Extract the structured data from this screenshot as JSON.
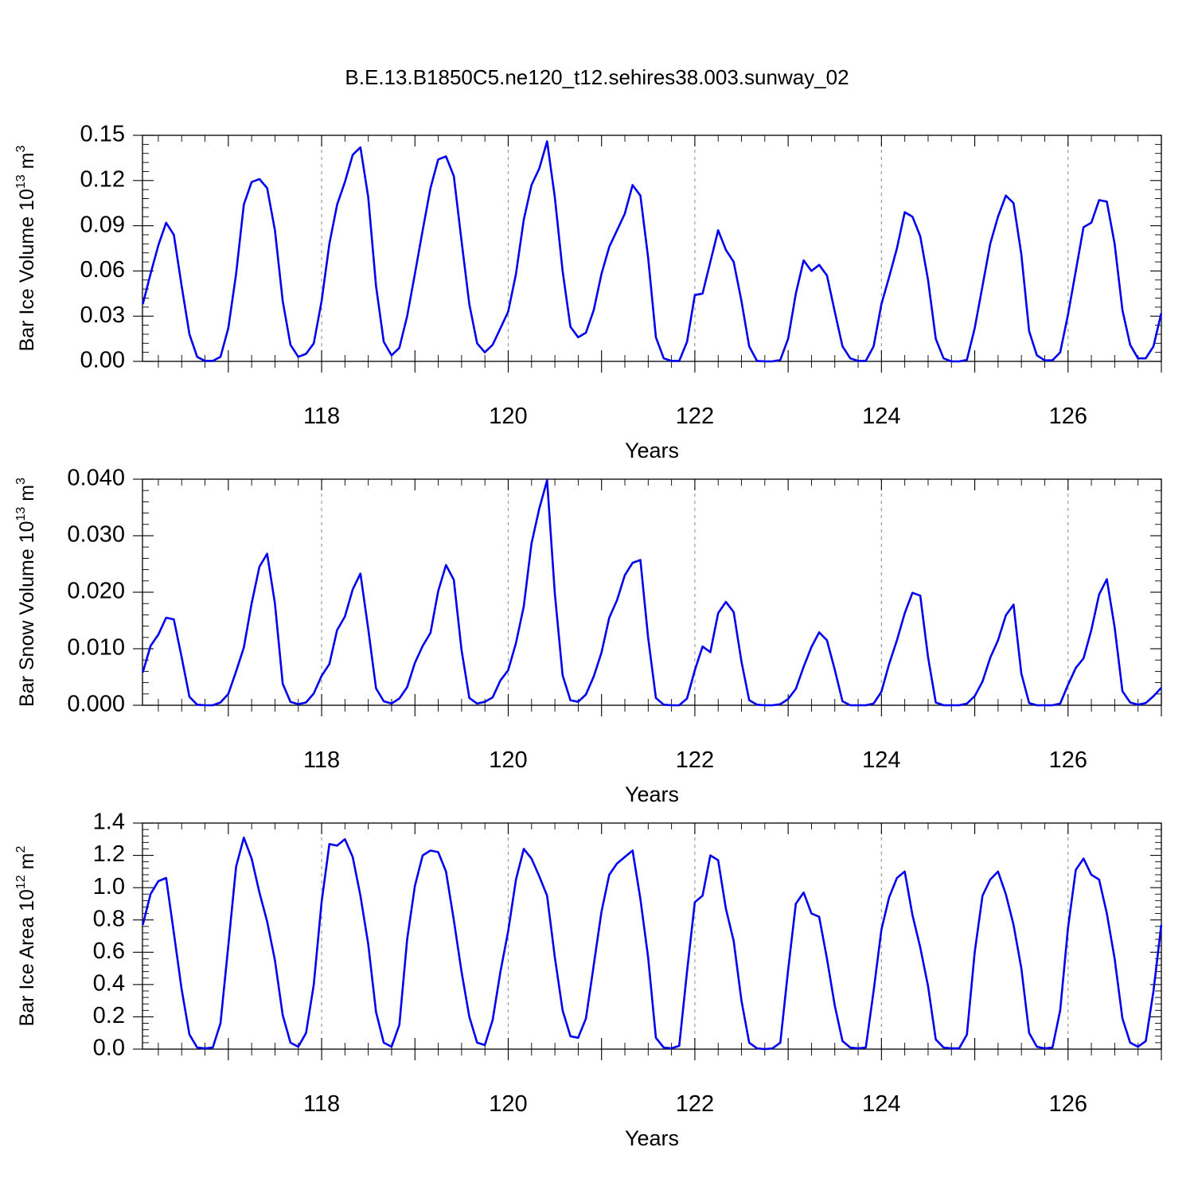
{
  "title": "B.E.13.B1850C5.ne120_t12.sehires38.003.sunway_02",
  "chart_data": [
    {
      "type": "line",
      "name": "ice-volume",
      "ylabel": "Bar Ice Volume 10",
      "ylabel_sup": "13",
      "ylabel_unit": " m",
      "ylabel_unit_sup": "3",
      "xlabel": "Years",
      "xlim": [
        116.08,
        127.0
      ],
      "ylim": [
        0,
        0.15
      ],
      "yticks": [
        0.0,
        0.03,
        0.06,
        0.09,
        0.12,
        0.15
      ],
      "ytick_labels": [
        "0.00",
        "0.03",
        "0.06",
        "0.09",
        "0.12",
        "0.15"
      ],
      "xticks": [
        118,
        120,
        122,
        124,
        126
      ],
      "xtick_labels": [
        "118",
        "120",
        "122",
        "124",
        "126"
      ],
      "vgrid": [
        118,
        120,
        122,
        124,
        126
      ],
      "grid": "dashed-vertical-at-major-x",
      "color": "#0000ee",
      "x_start": 116.083,
      "x_step": 0.08333,
      "values": [
        0.038,
        0.058,
        0.077,
        0.092,
        0.084,
        0.05,
        0.018,
        0.003,
        0.0003,
        0.0003,
        0.003,
        0.022,
        0.058,
        0.104,
        0.119,
        0.121,
        0.115,
        0.087,
        0.04,
        0.011,
        0.003,
        0.005,
        0.012,
        0.04,
        0.078,
        0.104,
        0.119,
        0.137,
        0.142,
        0.109,
        0.05,
        0.013,
        0.004,
        0.009,
        0.03,
        0.058,
        0.087,
        0.115,
        0.134,
        0.136,
        0.123,
        0.08,
        0.038,
        0.012,
        0.006,
        0.011,
        0.022,
        0.033,
        0.058,
        0.094,
        0.117,
        0.128,
        0.146,
        0.109,
        0.06,
        0.023,
        0.016,
        0.019,
        0.034,
        0.058,
        0.076,
        0.087,
        0.098,
        0.117,
        0.11,
        0.069,
        0.016,
        0.002,
        0.0003,
        0.0003,
        0.013,
        0.044,
        0.045,
        0.066,
        0.087,
        0.074,
        0.066,
        0.04,
        0.01,
        0.0003,
        0.0,
        0.0,
        0.001,
        0.015,
        0.045,
        0.067,
        0.06,
        0.064,
        0.057,
        0.033,
        0.01,
        0.002,
        0.0003,
        0.0003,
        0.01,
        0.038,
        0.056,
        0.075,
        0.099,
        0.096,
        0.083,
        0.054,
        0.015,
        0.002,
        0.0,
        0.0,
        0.001,
        0.022,
        0.05,
        0.078,
        0.096,
        0.11,
        0.105,
        0.071,
        0.02,
        0.004,
        0.0007,
        0.0007,
        0.006,
        0.031,
        0.06,
        0.089,
        0.092,
        0.107,
        0.106,
        0.078,
        0.034,
        0.011,
        0.002,
        0.002,
        0.01,
        0.032
      ]
    },
    {
      "type": "line",
      "name": "snow-volume",
      "ylabel": "Bar Snow Volume 10",
      "ylabel_sup": "13",
      "ylabel_unit": " m",
      "ylabel_unit_sup": "3",
      "xlabel": "Years",
      "xlim": [
        116.08,
        127.0
      ],
      "ylim": [
        0,
        0.04
      ],
      "yticks": [
        0.0,
        0.01,
        0.02,
        0.03,
        0.04
      ],
      "ytick_labels": [
        "0.000",
        "0.010",
        "0.020",
        "0.030",
        "0.040"
      ],
      "xticks": [
        118,
        120,
        122,
        124,
        126
      ],
      "xtick_labels": [
        "118",
        "120",
        "122",
        "124",
        "126"
      ],
      "vgrid": [
        118,
        120,
        122,
        124,
        126
      ],
      "grid": "dashed-vertical-at-major-x",
      "color": "#0000ee",
      "x_start": 116.083,
      "x_step": 0.08333,
      "values": [
        0.0058,
        0.0105,
        0.0125,
        0.0155,
        0.0152,
        0.0085,
        0.0015,
        0.0001,
        0.0,
        0.0,
        0.0005,
        0.002,
        0.006,
        0.0102,
        0.018,
        0.0245,
        0.0268,
        0.018,
        0.0038,
        0.0006,
        0.0002,
        0.0005,
        0.0021,
        0.0052,
        0.0073,
        0.0133,
        0.0157,
        0.0205,
        0.0233,
        0.0135,
        0.003,
        0.0007,
        0.0003,
        0.0012,
        0.0032,
        0.0075,
        0.0105,
        0.0128,
        0.0202,
        0.0248,
        0.0222,
        0.0098,
        0.0013,
        0.0003,
        0.0006,
        0.0014,
        0.0044,
        0.0062,
        0.011,
        0.0175,
        0.0286,
        0.0348,
        0.0398,
        0.0198,
        0.0053,
        0.0009,
        0.0006,
        0.0019,
        0.0051,
        0.0093,
        0.0155,
        0.0186,
        0.023,
        0.0252,
        0.0257,
        0.012,
        0.0013,
        0.0001,
        0.0,
        0.0,
        0.0012,
        0.0062,
        0.0104,
        0.0094,
        0.0163,
        0.0183,
        0.0165,
        0.0077,
        0.0009,
        0.0001,
        0.0,
        0.0,
        0.0002,
        0.0011,
        0.0029,
        0.0068,
        0.0103,
        0.0129,
        0.0115,
        0.0063,
        0.0007,
        0.0,
        0.0,
        0.0,
        0.0003,
        0.0024,
        0.0073,
        0.0115,
        0.0163,
        0.0199,
        0.0194,
        0.0085,
        0.0005,
        0.0,
        0.0,
        0.0,
        0.0003,
        0.0016,
        0.0042,
        0.0084,
        0.0115,
        0.0159,
        0.0178,
        0.0056,
        0.0004,
        0.0,
        0.0,
        0.0,
        0.0003,
        0.0036,
        0.0066,
        0.0083,
        0.0133,
        0.0196,
        0.0223,
        0.0138,
        0.0025,
        0.0005,
        0.0001,
        0.0004,
        0.0016,
        0.0031
      ]
    },
    {
      "type": "line",
      "name": "ice-area",
      "ylabel": "Bar Ice Area 10",
      "ylabel_sup": "12",
      "ylabel_unit": " m",
      "ylabel_unit_sup": "2",
      "xlabel": "Years",
      "xlim": [
        116.08,
        127.0
      ],
      "ylim": [
        0,
        1.4
      ],
      "yticks": [
        0.0,
        0.2,
        0.4,
        0.6,
        0.8,
        1.0,
        1.2,
        1.4
      ],
      "ytick_labels": [
        "0.0",
        "0.2",
        "0.4",
        "0.6",
        "0.8",
        "1.0",
        "1.2",
        "1.4"
      ],
      "xticks": [
        118,
        120,
        122,
        124,
        126
      ],
      "xtick_labels": [
        "118",
        "120",
        "122",
        "124",
        "126"
      ],
      "vgrid": [
        118,
        120,
        122,
        124,
        126
      ],
      "grid": "dashed-vertical-at-major-x",
      "color": "#0000ee",
      "x_start": 116.083,
      "x_step": 0.08333,
      "values": [
        0.77,
        0.96,
        1.04,
        1.06,
        0.72,
        0.37,
        0.09,
        0.01,
        0.005,
        0.01,
        0.16,
        0.64,
        1.13,
        1.31,
        1.18,
        0.97,
        0.79,
        0.55,
        0.21,
        0.04,
        0.015,
        0.1,
        0.4,
        0.91,
        1.27,
        1.26,
        1.3,
        1.19,
        0.95,
        0.65,
        0.23,
        0.04,
        0.015,
        0.15,
        0.68,
        1.01,
        1.2,
        1.23,
        1.22,
        1.1,
        0.8,
        0.48,
        0.2,
        0.04,
        0.025,
        0.18,
        0.48,
        0.73,
        1.05,
        1.24,
        1.18,
        1.07,
        0.95,
        0.57,
        0.24,
        0.08,
        0.07,
        0.19,
        0.52,
        0.85,
        1.08,
        1.15,
        1.19,
        1.23,
        0.93,
        0.57,
        0.07,
        0.01,
        0.005,
        0.02,
        0.48,
        0.91,
        0.95,
        1.2,
        1.17,
        0.87,
        0.67,
        0.3,
        0.04,
        0.005,
        0.0,
        0.005,
        0.04,
        0.49,
        0.9,
        0.97,
        0.84,
        0.82,
        0.56,
        0.27,
        0.05,
        0.01,
        0.005,
        0.01,
        0.36,
        0.74,
        0.94,
        1.06,
        1.1,
        0.83,
        0.63,
        0.39,
        0.06,
        0.01,
        0.005,
        0.005,
        0.09,
        0.6,
        0.95,
        1.05,
        1.1,
        0.96,
        0.77,
        0.5,
        0.1,
        0.015,
        0.005,
        0.01,
        0.24,
        0.75,
        1.11,
        1.18,
        1.08,
        1.05,
        0.84,
        0.56,
        0.19,
        0.04,
        0.015,
        0.05,
        0.36,
        0.77
      ]
    }
  ]
}
